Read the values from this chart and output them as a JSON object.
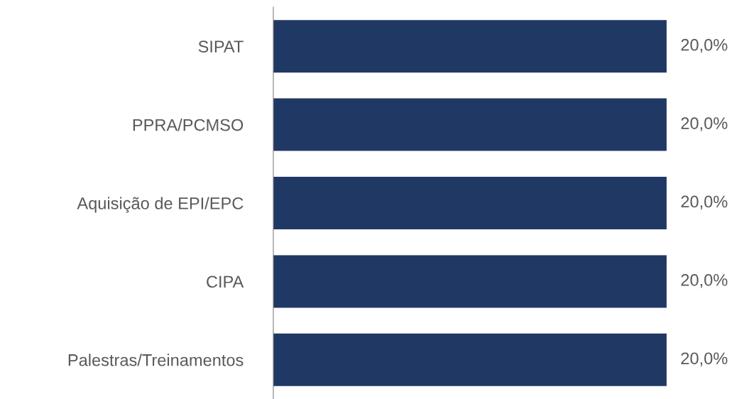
{
  "chart_data": {
    "type": "bar",
    "orientation": "horizontal",
    "categories": [
      "SIPAT",
      "PPRA/PCMSO",
      "Aquisição de EPI/EPC",
      "CIPA",
      "Palestras/Treinamentos"
    ],
    "values": [
      20,
      20,
      20,
      20,
      20
    ],
    "value_labels": [
      "20,0%",
      "20,0%",
      "20,0%",
      "20,0%",
      "20,0%"
    ],
    "color": "#203864",
    "grid": false
  }
}
